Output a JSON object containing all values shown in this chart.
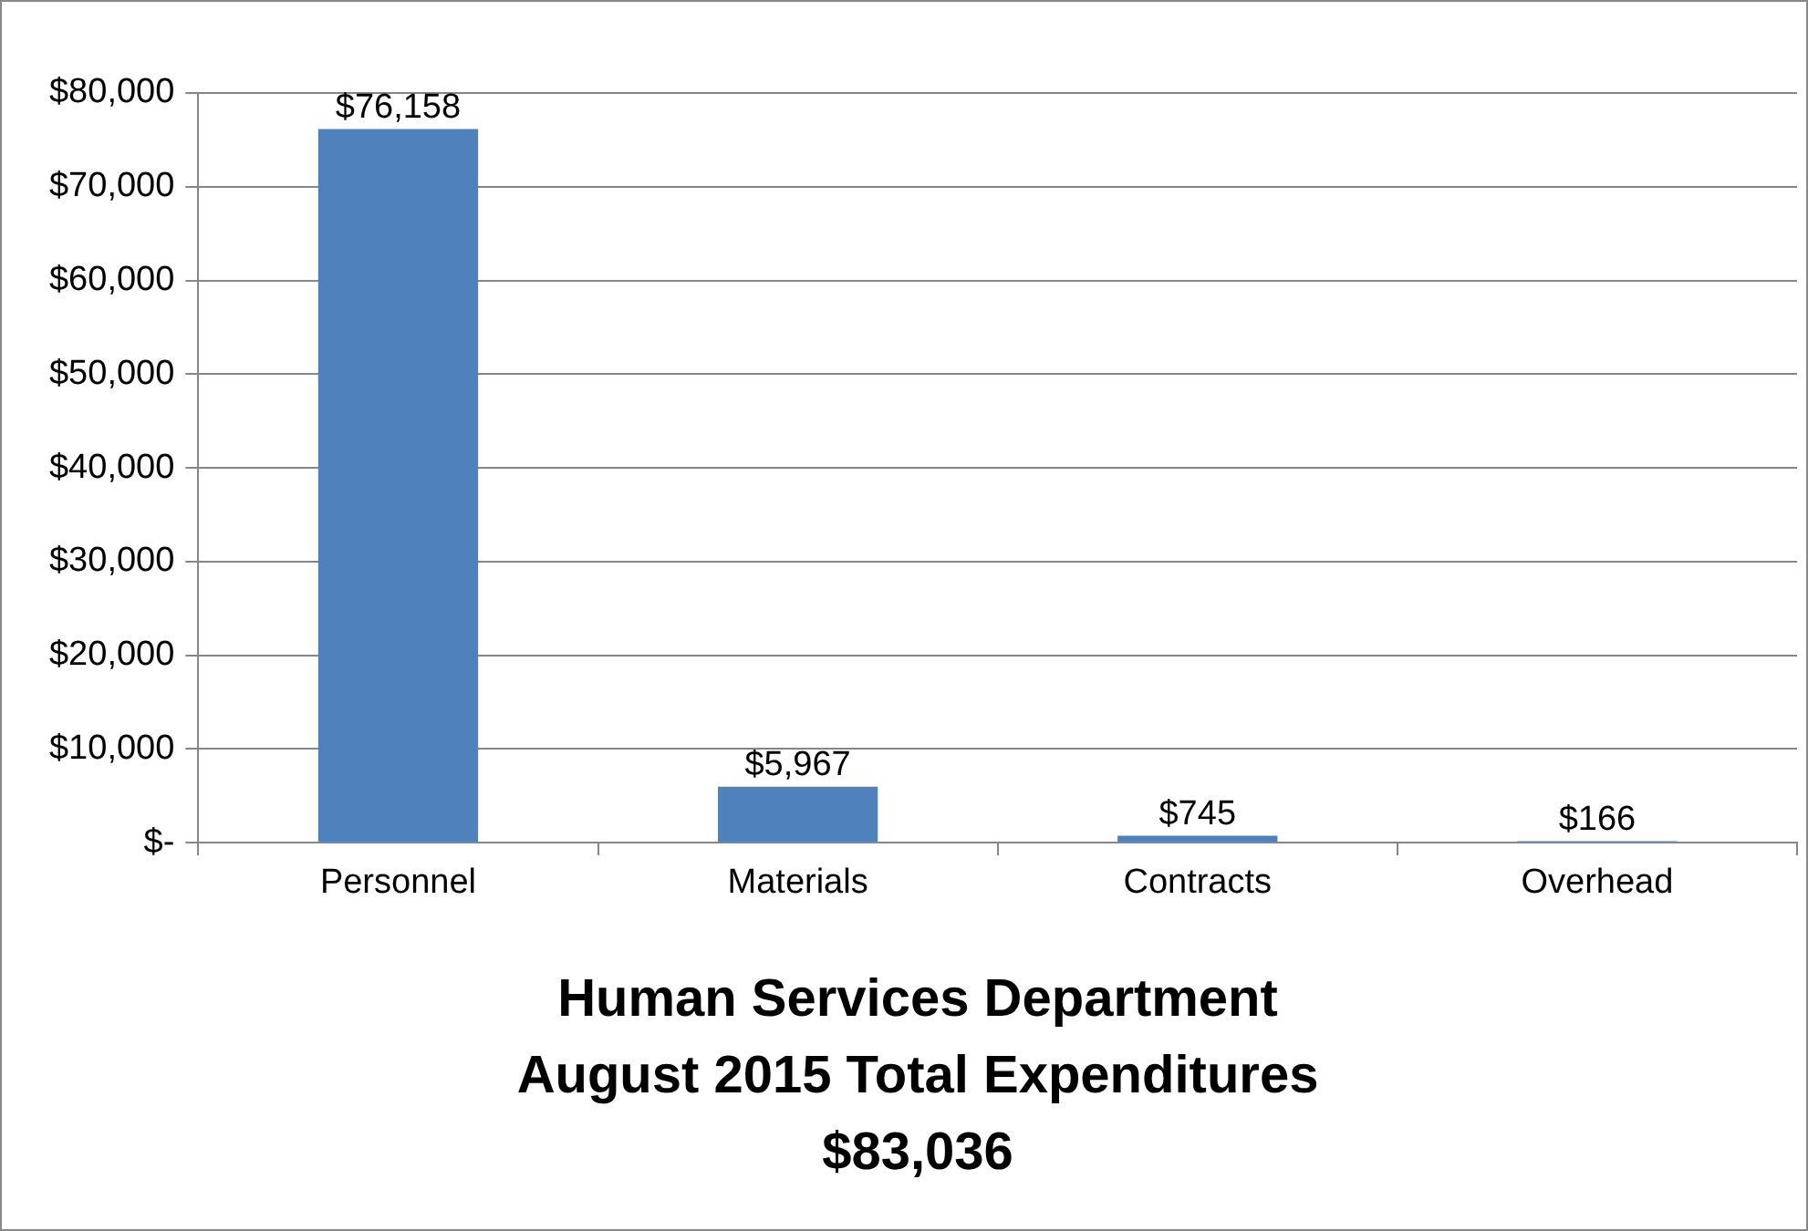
{
  "chart_data": {
    "type": "bar",
    "title": "Human Services Department\nAugust 2015 Total Expenditures\n$83,036",
    "categories": [
      "Personnel",
      "Materials",
      "Contracts",
      "Overhead"
    ],
    "values": [
      76158,
      5967,
      745,
      166
    ],
    "value_labels": [
      "$76,158",
      "$5,967",
      "$745",
      "$166"
    ],
    "color": "#4f81bd",
    "ylim": [
      0,
      80000
    ],
    "yticks": [
      {
        "value": 0,
        "label": "$-"
      },
      {
        "value": 10000,
        "label": "$10,000"
      },
      {
        "value": 20000,
        "label": "$20,000"
      },
      {
        "value": 30000,
        "label": "$30,000"
      },
      {
        "value": 40000,
        "label": "$40,000"
      },
      {
        "value": 50000,
        "label": "$50,000"
      },
      {
        "value": 60000,
        "label": "$60,000"
      },
      {
        "value": 70000,
        "label": "$70,000"
      },
      {
        "value": 80000,
        "label": "$80,000"
      }
    ],
    "grid": "y",
    "legend": false
  }
}
